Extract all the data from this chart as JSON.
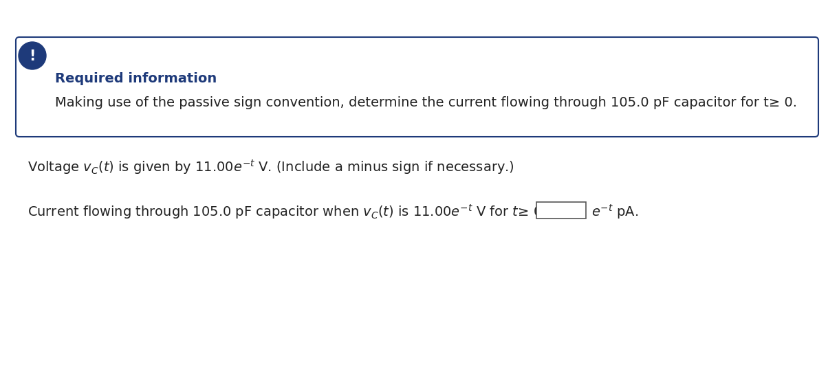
{
  "bg_color": "#ffffff",
  "box_border_color": "#1e3a7a",
  "icon_color": "#1e3a7a",
  "icon_text": "!",
  "required_info_label": "Required information",
  "required_info_color": "#1e3a7a",
  "box_body_text": "Making use of the passive sign convention, determine the current flowing through 105.0 pF capacitor for t≥ 0.",
  "line1_mathtext": "Voltage $v_C(t)$ is given by 11.00$e^{-t}$ V. (Include a minus sign if necessary.)",
  "line2_mathtext": "Current flowing through 105.0 pF capacitor when $v_C(t)$ is 11.00$e^{-t}$ V for $t≥$ 0 is",
  "suffix_mathtext": "$e^{-t}$ pA.",
  "font_size_body": 14,
  "font_size_header": 14,
  "font_size_box_body": 14,
  "text_color": "#222222",
  "answer_box_color": "#555555"
}
